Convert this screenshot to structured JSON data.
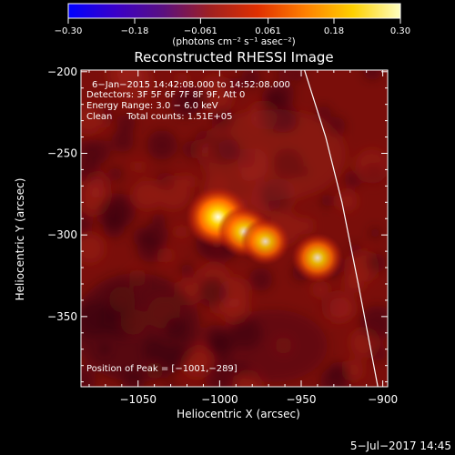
{
  "chart_data": {
    "type": "heatmap",
    "title": "Reconstructed RHESSI Image",
    "xlabel": "Heliocentric X (arcsec)",
    "ylabel": "Heliocentric Y (arcsec)",
    "xlim": [
      -1085,
      -897
    ],
    "ylim": [
      -393,
      -199
    ],
    "x_ticks": [
      -1050,
      -1000,
      -950,
      -900
    ],
    "y_ticks": [
      -200,
      -250,
      -300,
      -350
    ],
    "x_tick_labels": [
      "−1050",
      "−1000",
      "−950",
      "−900"
    ],
    "y_tick_labels": [
      "−200",
      "−250",
      "−300",
      "−350"
    ],
    "colorbar": {
      "range": [
        -0.3,
        0.3
      ],
      "ticks": [
        -0.3,
        -0.18,
        -0.061,
        0.061,
        0.18,
        0.3
      ],
      "tick_labels": [
        "−0.30",
        "−0.18",
        "−0.061",
        "0.061",
        "0.18",
        "0.30"
      ],
      "units": "(photons cm⁻² s⁻¹ asec⁻²)",
      "colors": [
        "#0000ff",
        "#3a00c8",
        "#5a1080",
        "#a02020",
        "#e03000",
        "#ff8000",
        "#ffd000",
        "#ffffc0"
      ]
    },
    "annotations": [
      "6−Jan−2015 14:42:08.000 to 14:52:08.000",
      "Detectors: 3F 5F 6F 7F 8F 9F, Att 0",
      "Energy Range: 3.0 − 6.0 keV",
      "Clean     Total counts: 1.51E+05"
    ],
    "peak_label": "Position of Peak = [−1001,−289]",
    "sources": [
      {
        "x": -1001,
        "y": -289,
        "intensity": 1.0
      },
      {
        "x": -985,
        "y": -298,
        "intensity": 0.72
      },
      {
        "x": -972,
        "y": -304,
        "intensity": 0.6
      },
      {
        "x": -940,
        "y": -314,
        "intensity": 0.66
      }
    ],
    "limb": [
      [
        -948,
        -199
      ],
      [
        -935,
        -240
      ],
      [
        -925,
        -280
      ],
      [
        -915,
        -330
      ],
      [
        -903,
        -393
      ]
    ],
    "grid": false
  },
  "footer": {
    "date": "5−Jul−2017 14:45"
  }
}
